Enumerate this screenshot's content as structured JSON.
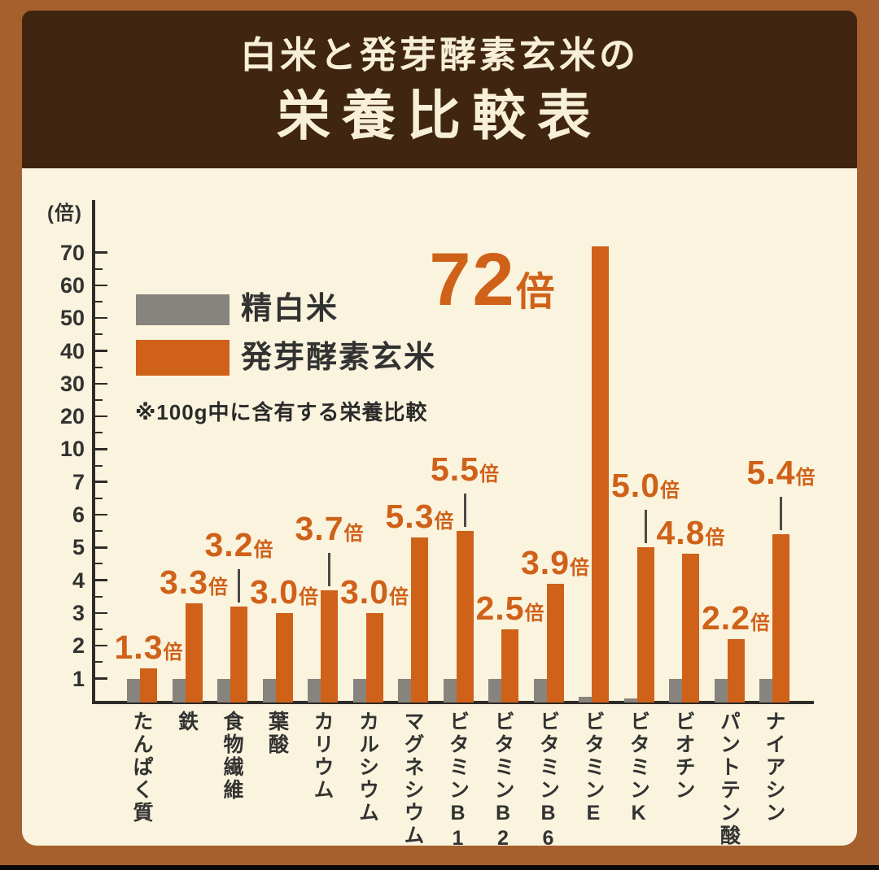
{
  "header": {
    "title_line1": "白米と発芽酵素玄米の",
    "title_line2": "栄養比較表"
  },
  "legend": {
    "items": [
      {
        "label": "精白米",
        "color": "#87847e"
      },
      {
        "label": "発芽酵素玄米",
        "color": "#cf6119"
      }
    ],
    "note": "※100g中に含有する栄養比較"
  },
  "chart_data": {
    "type": "bar",
    "title": "栄養比較表",
    "subtitle": "白米と発芽酵素玄米の",
    "ylabel": "(倍)",
    "yticks": [
      1,
      2,
      3,
      4,
      5,
      6,
      7,
      10,
      20,
      30,
      40,
      50,
      60,
      70
    ],
    "axis_style": "non-linear: the 14 tick values are evenly spaced, minor ticks at midpoints",
    "categories": [
      "たんぱく質",
      "鉄",
      "食物繊維",
      "葉酸",
      "カリウム",
      "カルシウム",
      "マグネシウム",
      "ビタミンB1",
      "ビタミンB2",
      "ビタミンB6",
      "ビタミンE",
      "ビタミンK",
      "ビオチン",
      "パントテン酸",
      "ナイアシン"
    ],
    "series": [
      {
        "name": "精白米",
        "color": "#87847e",
        "values": [
          1,
          1,
          1,
          1,
          1,
          1,
          1,
          1,
          1,
          1,
          0.45,
          0.38,
          1,
          1,
          1
        ]
      },
      {
        "name": "発芽酵素玄米",
        "color": "#cf6119",
        "values": [
          1.3,
          3.3,
          3.2,
          3.0,
          3.7,
          3.0,
          5.3,
          5.5,
          2.5,
          3.9,
          72,
          5.0,
          4.8,
          2.2,
          5.4
        ]
      }
    ],
    "bar_labels": [
      "1.3",
      "3.3",
      "3.2",
      "3.0",
      "3.7",
      "3.0",
      "5.3",
      "5.5",
      "2.5",
      "3.9",
      "72",
      "5.0",
      "4.8",
      "2.2",
      "5.4"
    ],
    "bar_label_suffix": "倍",
    "labels_with_leader_line": [
      2,
      4,
      7,
      11,
      14
    ],
    "highlight_index": 10,
    "legend_position": "upper-left"
  },
  "colors": {
    "frame": "#a6602d",
    "title_band": "#402610",
    "panel": "#faf3dd",
    "accent_orange": "#cf6119",
    "bar_gray": "#87847e",
    "axis": "#2e2b28",
    "text_dark": "#323232",
    "title_text": "#f7efd8",
    "bottom_strip": "#0a0a0a"
  }
}
